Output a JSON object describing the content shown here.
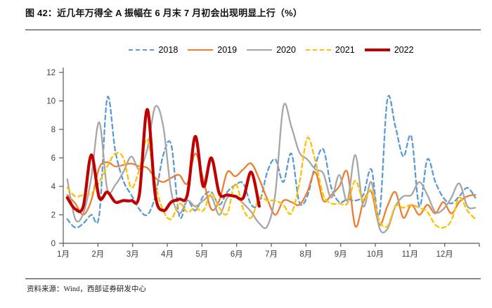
{
  "figure": {
    "title": "图 42：近几年万得全 A 振幅在 6 月末 7 月初会出现明显上行（%）",
    "source": "资料来源：Wind，西部证券研发中心"
  },
  "chart_data": {
    "type": "line",
    "title": "近几年万得全A振幅在6月末7月初会出现明显上行（%）",
    "x_unit": "week-of-year",
    "categories_x": [
      "1月",
      "2月",
      "3月",
      "4月",
      "5月",
      "6月",
      "7月",
      "8月",
      "9月",
      "10月",
      "11月",
      "12月"
    ],
    "ylabel": "",
    "xlabel": "",
    "ylim": [
      0,
      12
    ],
    "yticks": [
      0,
      2,
      4,
      6,
      8,
      10,
      12
    ],
    "grid": false,
    "legend_position": "top",
    "axis_color": "#595959",
    "tick_label_color": "#404040",
    "series": [
      {
        "name": "2018",
        "color": "#5B9BD5",
        "style": "dashed",
        "width": 2.3,
        "values": [
          1.7,
          1.1,
          1.4,
          2.0,
          2.0,
          10.2,
          6.5,
          4.4,
          3.4,
          2.4,
          2.0,
          3.3,
          6.2,
          6.9,
          1.9,
          3.0,
          2.3,
          3.3,
          3.6,
          2.7,
          3.6,
          4.1,
          4.2,
          2.7,
          2.8,
          5.0,
          5.9,
          4.3,
          6.3,
          2.9,
          3.3,
          5.5,
          6.6,
          3.9,
          2.9,
          3.1,
          3.0,
          3.4,
          5.2,
          2.0,
          10.1,
          8.2,
          6.1,
          7.5,
          2.6,
          5.9,
          4.3,
          3.2,
          2.8,
          3.3,
          3.9,
          3.2
        ]
      },
      {
        "name": "2019",
        "color": "#ED7D31",
        "style": "solid",
        "width": 2.3,
        "values": [
          3.4,
          2.8,
          2.0,
          3.0,
          5.3,
          5.7,
          5.4,
          5.5,
          5.6,
          5.4,
          5.3,
          4.6,
          4.3,
          4.6,
          4.8,
          4.2,
          6.3,
          4.5,
          2.4,
          3.0,
          5.0,
          4.7,
          5.2,
          5.6,
          4.5,
          3.1,
          2.0,
          3.0,
          2.9,
          2.7,
          3.6,
          5.0,
          3.0,
          3.4,
          4.0,
          5.0,
          1.2,
          2.9,
          3.6,
          1.3,
          2.6,
          3.6,
          1.8,
          2.7,
          2.0,
          2.7,
          2.1,
          2.9,
          2.1,
          2.9,
          3.3,
          3.4
        ]
      },
      {
        "name": "2020",
        "color": "#A6A6A6",
        "style": "solid",
        "width": 2.3,
        "values": [
          4.5,
          1.7,
          2.1,
          4.6,
          8.5,
          3.8,
          4.1,
          5.0,
          6.1,
          5.2,
          6.6,
          9.6,
          8.2,
          3.6,
          2.1,
          3.0,
          2.6,
          3.0,
          3.3,
          2.0,
          3.2,
          3.3,
          2.8,
          2.2,
          1.4,
          1.2,
          3.5,
          9.6,
          8.2,
          6.4,
          5.9,
          5.2,
          4.9,
          3.2,
          4.8,
          3.0,
          6.2,
          2.6,
          4.3,
          1.1,
          1.0,
          2.6,
          3.3,
          3.4,
          4.3,
          3.4,
          2.2,
          2.4,
          3.2,
          4.2,
          2.6,
          2.5
        ]
      },
      {
        "name": "2021",
        "color": "#FFC000",
        "style": "dashed",
        "width": 2.3,
        "values": [
          3.9,
          3.3,
          3.4,
          3.5,
          4.3,
          5.4,
          6.3,
          6.0,
          3.9,
          5.2,
          7.3,
          4.2,
          2.3,
          1.7,
          2.8,
          2.2,
          2.5,
          2.3,
          3.5,
          2.5,
          2.1,
          4.2,
          2.4,
          1.8,
          3.2,
          3.0,
          3.0,
          2.7,
          2.1,
          4.2,
          7.4,
          5.8,
          3.4,
          2.8,
          2.8,
          2.8,
          4.4,
          3.0,
          3.7,
          1.6,
          1.2,
          2.6,
          2.5,
          2.7,
          2.5,
          2.2,
          1.3,
          1.1,
          1.6,
          3.2,
          2.3,
          1.7
        ]
      },
      {
        "name": "2022",
        "color": "#C00000",
        "style": "solid",
        "width": 4.2,
        "values": [
          3.2,
          2.4,
          2.6,
          6.2,
          3.2,
          3.6,
          2.9,
          3.0,
          3.0,
          3.4,
          9.4,
          3.4,
          2.3,
          2.9,
          3.1,
          3.4,
          7.5,
          4.0,
          6.0,
          3.5,
          3.4,
          3.3,
          3.2,
          5.0,
          2.6
        ]
      }
    ]
  }
}
